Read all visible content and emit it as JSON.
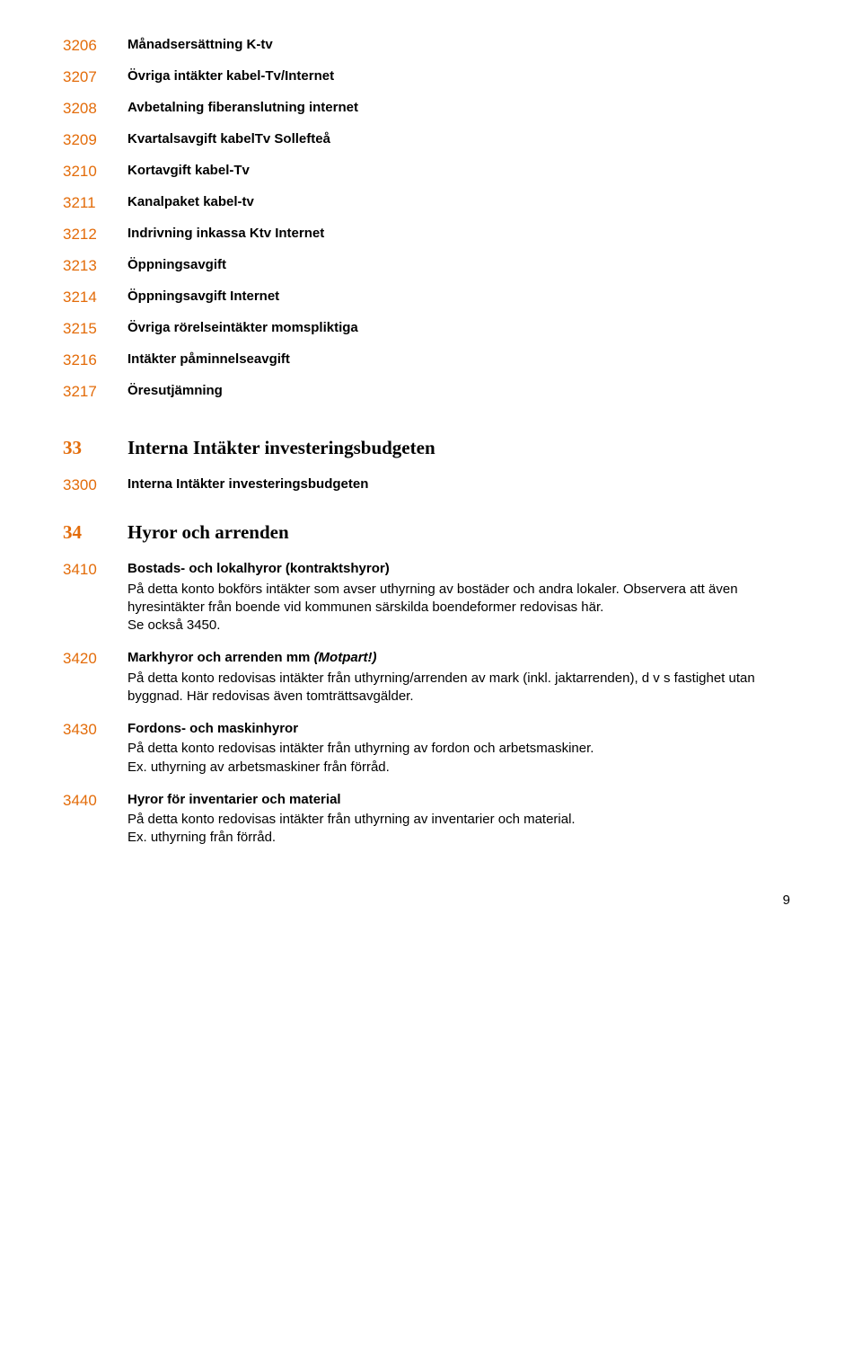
{
  "colors": {
    "code": "#e36c0a",
    "text": "#000000",
    "background": "#ffffff"
  },
  "typography": {
    "body_font": "Arial",
    "heading_font": "Times New Roman",
    "body_fontsize_pt": 11,
    "heading_fontsize_pt": 16,
    "code_fontsize_pt": 13
  },
  "page_number": "9",
  "entries": [
    {
      "type": "simple",
      "code": "3206",
      "title": "Månadsersättning K-tv"
    },
    {
      "type": "simple",
      "code": "3207",
      "title": "Övriga intäkter kabel-Tv/Internet"
    },
    {
      "type": "simple",
      "code": "3208",
      "title": "Avbetalning fiberanslutning internet"
    },
    {
      "type": "simple",
      "code": "3209",
      "title": "Kvartalsavgift kabelTv Sollefteå"
    },
    {
      "type": "simple",
      "code": "3210",
      "title": "Kortavgift kabel-Tv"
    },
    {
      "type": "simple",
      "code": "3211",
      "title": "Kanalpaket kabel-tv"
    },
    {
      "type": "simple",
      "code": "3212",
      "title": "Indrivning inkassa Ktv Internet"
    },
    {
      "type": "simple",
      "code": "3213",
      "title": "Öppningsavgift"
    },
    {
      "type": "simple",
      "code": "3214",
      "title": "Öppningsavgift Internet"
    },
    {
      "type": "simple",
      "code": "3215",
      "title": "Övriga rörelseintäkter momspliktiga"
    },
    {
      "type": "simple",
      "code": "3216",
      "title": "Intäkter påminnelseavgift"
    },
    {
      "type": "simple",
      "code": "3217",
      "title": "Öresutjämning"
    },
    {
      "type": "heading",
      "code": "33",
      "title": "Interna Intäkter investeringsbudgeten",
      "first": true
    },
    {
      "type": "simple",
      "code": "3300",
      "title": "Interna Intäkter investeringsbudgeten"
    },
    {
      "type": "heading",
      "code": "34",
      "title": "Hyror och arrenden"
    },
    {
      "type": "detail",
      "code": "3410",
      "title": "Bostads- och lokalhyror (kontraktshyror)",
      "desc": "På detta konto bokförs intäkter som avser uthyrning av bostäder och andra lokaler. Observera att även hyresintäkter från boende vid kommunen särskilda boendeformer redovisas här.\nSe också 3450."
    },
    {
      "type": "detail",
      "code": "3420",
      "title_pre": "Markhyror och arrenden mm  ",
      "title_italic": "(Motpart!)",
      "desc": "På detta konto redovisas intäkter från uthyrning/arrenden av mark (inkl. jaktarrenden), d v s fastighet  utan byggnad. Här redovisas även tomträttsavgälder."
    },
    {
      "type": "detail",
      "code": "3430",
      "title": "Fordons- och maskinhyror",
      "desc": "På detta konto redovisas intäkter från uthyrning av fordon och arbetsmaskiner.\nEx. uthyrning av arbetsmaskiner från förråd."
    },
    {
      "type": "detail",
      "code": "3440",
      "title": "Hyror för inventarier och material",
      "desc": "På detta konto redovisas intäkter från uthyrning av inventarier och material.\nEx. uthyrning från förråd."
    }
  ]
}
